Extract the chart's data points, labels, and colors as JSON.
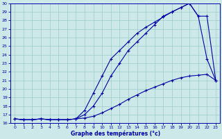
{
  "xlabel": "Graphe des températures (°c)",
  "bg_color": "#cce8e8",
  "grid_color": "#99cccc",
  "line_color": "#0000aa",
  "xlim": [
    -0.5,
    23.5
  ],
  "ylim": [
    16,
    30
  ],
  "xticks": [
    0,
    1,
    2,
    3,
    4,
    5,
    6,
    7,
    8,
    9,
    10,
    11,
    12,
    13,
    14,
    15,
    16,
    17,
    18,
    19,
    20,
    21,
    22,
    23
  ],
  "yticks": [
    16,
    17,
    18,
    19,
    20,
    21,
    22,
    23,
    24,
    25,
    26,
    27,
    28,
    29,
    30
  ],
  "line1_x": [
    0,
    1,
    2,
    3,
    4,
    5,
    6,
    7,
    8,
    9,
    10,
    11,
    12,
    13,
    14,
    15,
    16,
    17,
    18,
    19,
    20,
    21,
    22,
    23
  ],
  "line1_y": [
    16.5,
    16.4,
    16.4,
    16.5,
    16.4,
    16.4,
    16.4,
    16.5,
    17.0,
    18.0,
    19.5,
    21.5,
    23.0,
    24.5,
    25.5,
    26.5,
    27.5,
    28.5,
    29.0,
    29.5,
    30.0,
    28.5,
    28.5,
    21.0
  ],
  "line2_x": [
    0,
    1,
    2,
    3,
    4,
    5,
    6,
    7,
    8,
    9,
    10,
    11,
    12,
    13,
    14,
    15,
    16,
    17,
    18,
    19,
    20,
    21,
    22,
    23
  ],
  "line2_y": [
    16.5,
    16.4,
    16.4,
    16.5,
    16.4,
    16.4,
    16.4,
    16.5,
    17.5,
    19.5,
    21.5,
    23.5,
    24.5,
    25.5,
    26.5,
    27.2,
    27.8,
    28.4,
    29.0,
    29.5,
    30.0,
    28.5,
    23.5,
    21.0
  ],
  "line3_x": [
    0,
    1,
    2,
    3,
    4,
    5,
    6,
    7,
    8,
    9,
    10,
    11,
    12,
    13,
    14,
    15,
    16,
    17,
    18,
    19,
    20,
    21,
    22,
    23
  ],
  "line3_y": [
    16.5,
    16.4,
    16.4,
    16.5,
    16.4,
    16.4,
    16.4,
    16.5,
    16.6,
    16.8,
    17.2,
    17.7,
    18.2,
    18.8,
    19.3,
    19.8,
    20.2,
    20.6,
    21.0,
    21.3,
    21.5,
    21.6,
    21.7,
    21.0
  ]
}
